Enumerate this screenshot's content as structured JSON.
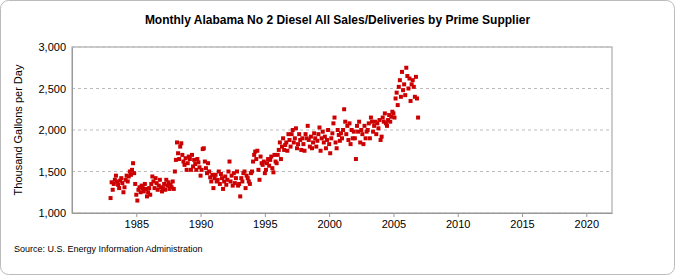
{
  "chart_data": {
    "type": "scatter",
    "title": "Monthly Alabama No 2 Diesel All Sales/Deliveries by Prime Supplier",
    "y_label": "Thousand Gallons per Day",
    "source": "Source: U.S. Energy Information Administration",
    "color": "#cc0000",
    "marker": "square",
    "grid": true,
    "xlim": [
      1980,
      2022
    ],
    "xticks": [
      1985,
      1990,
      1995,
      2000,
      2005,
      2010,
      2015,
      2020
    ],
    "ylim": [
      1000,
      3000
    ],
    "yticks": [
      {
        "value": 1000,
        "label": "1,000"
      },
      {
        "value": 1500,
        "label": "1,500"
      },
      {
        "value": 2000,
        "label": "2,000"
      },
      {
        "value": 2500,
        "label": "2,500"
      },
      {
        "value": 3000,
        "label": "3,000"
      }
    ],
    "x": [
      1983,
      1983.083,
      1983.167,
      1983.25,
      1983.333,
      1983.417,
      1983.5,
      1983.583,
      1983.667,
      1983.75,
      1983.833,
      1983.917,
      1984,
      1984.083,
      1984.167,
      1984.25,
      1984.333,
      1984.417,
      1984.5,
      1984.583,
      1984.667,
      1984.75,
      1984.833,
      1984.917,
      1985,
      1985.083,
      1985.167,
      1985.25,
      1985.333,
      1985.417,
      1985.5,
      1985.583,
      1985.667,
      1985.75,
      1985.833,
      1985.917,
      1986,
      1986.083,
      1986.167,
      1986.25,
      1986.333,
      1986.417,
      1986.5,
      1986.583,
      1986.667,
      1986.75,
      1986.833,
      1986.917,
      1987,
      1987.083,
      1987.167,
      1987.25,
      1987.333,
      1987.417,
      1987.5,
      1987.583,
      1987.667,
      1987.75,
      1987.833,
      1987.917,
      1988,
      1988.083,
      1988.167,
      1988.25,
      1988.333,
      1988.417,
      1988.5,
      1988.583,
      1988.667,
      1988.75,
      1988.833,
      1988.917,
      1989,
      1989.083,
      1989.167,
      1989.25,
      1989.333,
      1989.417,
      1989.5,
      1989.583,
      1989.667,
      1989.75,
      1989.833,
      1989.917,
      1990,
      1990.083,
      1990.167,
      1990.25,
      1990.333,
      1990.417,
      1990.5,
      1990.583,
      1990.667,
      1990.75,
      1990.833,
      1990.917,
      1991,
      1991.083,
      1991.167,
      1991.25,
      1991.333,
      1991.417,
      1991.5,
      1991.583,
      1991.667,
      1991.75,
      1991.833,
      1991.917,
      1992,
      1992.083,
      1992.167,
      1992.25,
      1992.333,
      1992.417,
      1992.5,
      1992.583,
      1992.667,
      1992.75,
      1992.833,
      1992.917,
      1993,
      1993.083,
      1993.167,
      1993.25,
      1993.333,
      1993.417,
      1993.5,
      1993.583,
      1993.667,
      1993.75,
      1993.833,
      1993.917,
      1994,
      1994.083,
      1994.167,
      1994.25,
      1994.333,
      1994.417,
      1994.5,
      1994.583,
      1994.667,
      1994.75,
      1994.833,
      1994.917,
      1995,
      1995.083,
      1995.167,
      1995.25,
      1995.333,
      1995.417,
      1995.5,
      1995.583,
      1995.667,
      1995.75,
      1995.833,
      1995.917,
      1996,
      1996.083,
      1996.167,
      1996.25,
      1996.333,
      1996.417,
      1996.5,
      1996.583,
      1996.667,
      1996.75,
      1996.833,
      1996.917,
      1997,
      1997.083,
      1997.167,
      1997.25,
      1997.333,
      1997.417,
      1997.5,
      1997.583,
      1997.667,
      1997.75,
      1997.833,
      1997.917,
      1998,
      1998.083,
      1998.167,
      1998.25,
      1998.333,
      1998.417,
      1998.5,
      1998.583,
      1998.667,
      1998.75,
      1998.833,
      1998.917,
      1999,
      1999.083,
      1999.167,
      1999.25,
      1999.333,
      1999.417,
      1999.5,
      1999.583,
      1999.667,
      1999.75,
      1999.833,
      1999.917,
      2000,
      2000.083,
      2000.167,
      2000.25,
      2000.333,
      2000.417,
      2000.5,
      2000.583,
      2000.667,
      2000.75,
      2000.833,
      2000.917,
      2001,
      2001.083,
      2001.167,
      2001.25,
      2001.333,
      2001.417,
      2001.5,
      2001.583,
      2001.667,
      2001.75,
      2001.833,
      2001.917,
      2002,
      2002.083,
      2002.167,
      2002.25,
      2002.333,
      2002.417,
      2002.5,
      2002.583,
      2002.667,
      2002.75,
      2002.833,
      2002.917,
      2003,
      2003.083,
      2003.167,
      2003.25,
      2003.333,
      2003.417,
      2003.5,
      2003.583,
      2003.667,
      2003.75,
      2003.833,
      2003.917,
      2004,
      2004.083,
      2004.167,
      2004.25,
      2004.333,
      2004.417,
      2004.5,
      2004.583,
      2004.667,
      2004.75,
      2004.833,
      2004.917,
      2005,
      2005.083,
      2005.167,
      2005.25,
      2005.333,
      2005.417,
      2005.5,
      2005.583,
      2005.667,
      2005.75,
      2005.833,
      2005.917,
      2006,
      2006.083,
      2006.167,
      2006.25,
      2006.333,
      2006.417,
      2006.5,
      2006.583,
      2006.667,
      2006.75,
      2006.833,
      2006.917
    ],
    "values": [
      1180,
      1370,
      1280,
      1350,
      1400,
      1450,
      1380,
      1340,
      1300,
      1390,
      1420,
      1360,
      1250,
      1310,
      1400,
      1450,
      1380,
      1440,
      1500,
      1460,
      1520,
      1600,
      1480,
      1350,
      1220,
      1150,
      1280,
      1310,
      1250,
      1330,
      1300,
      1260,
      1350,
      1290,
      1200,
      1250,
      1300,
      1220,
      1350,
      1440,
      1380,
      1300,
      1420,
      1360,
      1280,
      1330,
      1400,
      1310,
      1260,
      1300,
      1350,
      1280,
      1400,
      1330,
      1370,
      1290,
      1340,
      1310,
      1380,
      1290,
      1500,
      1640,
      1850,
      1720,
      1650,
      1800,
      1840,
      1700,
      1620,
      1580,
      1660,
      1520,
      1600,
      1680,
      1650,
      1520,
      1700,
      1560,
      1640,
      1590,
      1520,
      1650,
      1610,
      1550,
      1450,
      1520,
      1770,
      1780,
      1620,
      1540,
      1480,
      1600,
      1500,
      1430,
      1380,
      1460,
      1300,
      1420,
      1460,
      1380,
      1400,
      1500,
      1350,
      1470,
      1420,
      1290,
      1380,
      1440,
      1340,
      1400,
      1500,
      1620,
      1380,
      1450,
      1330,
      1480,
      1360,
      1420,
      1500,
      1330,
      1350,
      1200,
      1420,
      1380,
      1480,
      1500,
      1300,
      1450,
      1420,
      1380,
      1350,
      1480,
      1500,
      1620,
      1700,
      1740,
      1650,
      1750,
      1520,
      1400,
      1680,
      1600,
      1580,
      1620,
      1480,
      1520,
      1600,
      1650,
      1570,
      1640,
      1680,
      1540,
      1490,
      1700,
      1620,
      1600,
      1700,
      1760,
      1850,
      1650,
      1800,
      1900,
      1760,
      1820,
      1850,
      1750,
      1950,
      1880,
      1800,
      1950,
      2000,
      1850,
      1900,
      2020,
      1780,
      1830,
      1950,
      1880,
      1760,
      1900,
      1830,
      1750,
      1950,
      1900,
      2050,
      1880,
      1800,
      1920,
      1780,
      1850,
      1960,
      1900,
      1800,
      1870,
      1950,
      2030,
      1750,
      1900,
      1980,
      1850,
      1920,
      1780,
      1880,
      2000,
      1830,
      1720,
      1900,
      1960,
      2080,
      2150,
      1850,
      1780,
      2000,
      1940,
      1870,
      1960,
      1900,
      2000,
      2250,
      2100,
      1950,
      2050,
      1880,
      2080,
      1830,
      2000,
      1900,
      1980,
      1900,
      1650,
      2050,
      1980,
      2100,
      1850,
      2000,
      1950,
      1830,
      2050,
      1900,
      1980,
      2000,
      2080,
      1900,
      2150,
      2100,
      1980,
      2050,
      2100,
      1950,
      2080,
      2020,
      2120,
      1880,
      1920,
      2150,
      2100,
      2200,
      2080,
      2050,
      2120,
      2180,
      2100,
      2160,
      2220,
      2200,
      2150,
      2380,
      2450,
      2300,
      2520,
      2600,
      2400,
      2700,
      2480,
      2550,
      2420,
      2750,
      2650,
      2500,
      2620,
      2350,
      2550,
      2600,
      2520,
      2400,
      2640,
      2380,
      2150
    ]
  }
}
